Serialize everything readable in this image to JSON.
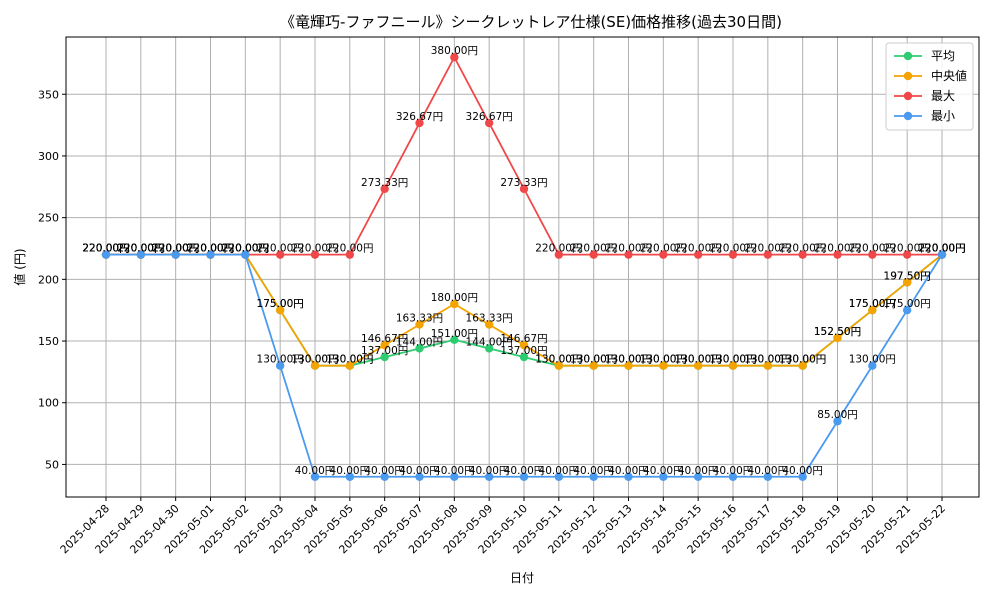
{
  "chart_data": {
    "type": "line",
    "title": "《竜輝巧-ファフニール》シークレットレア仕様(SE)価格推移(過去30日間)",
    "xlabel": "日付",
    "ylabel": "値 (円)",
    "ylim": [
      23.6,
      396.4
    ],
    "yticks": [
      50,
      100,
      150,
      200,
      250,
      300,
      350
    ],
    "grid": true,
    "legend_position": "top-right",
    "label_suffix": "円",
    "categories": [
      "2025-04-28",
      "2025-04-29",
      "2025-04-30",
      "2025-05-01",
      "2025-05-02",
      "2025-05-03",
      "2025-05-04",
      "2025-05-05",
      "2025-05-06",
      "2025-05-07",
      "2025-05-08",
      "2025-05-09",
      "2025-05-10",
      "2025-05-11",
      "2025-05-12",
      "2025-05-13",
      "2025-05-14",
      "2025-05-15",
      "2025-05-16",
      "2025-05-17",
      "2025-05-18",
      "2025-05-19",
      "2025-05-20",
      "2025-05-21",
      "2025-05-22"
    ],
    "series": [
      {
        "name": "平均",
        "color": "#2ecc71",
        "values": [
          220,
          220,
          220,
          220,
          220,
          175,
          130,
          130,
          137,
          144,
          151,
          144,
          137,
          130,
          130,
          130,
          130,
          130,
          130,
          130,
          130,
          152.5,
          175,
          197.5,
          220
        ]
      },
      {
        "name": "中央値",
        "color": "#f5a300",
        "values": [
          220,
          220,
          220,
          220,
          220,
          175,
          130,
          130,
          146.67,
          163.33,
          180,
          163.33,
          146.67,
          130,
          130,
          130,
          130,
          130,
          130,
          130,
          130,
          152.5,
          175,
          197.5,
          220
        ]
      },
      {
        "name": "最大",
        "color": "#f04848",
        "values": [
          220,
          220,
          220,
          220,
          220,
          220,
          220,
          220,
          273.33,
          326.67,
          380,
          326.67,
          273.33,
          220,
          220,
          220,
          220,
          220,
          220,
          220,
          220,
          220,
          220,
          220,
          220
        ]
      },
      {
        "name": "最小",
        "color": "#4a9af0",
        "values": [
          220,
          220,
          220,
          220,
          220,
          130,
          40,
          40,
          40,
          40,
          40,
          40,
          40,
          40,
          40,
          40,
          40,
          40,
          40,
          40,
          40,
          85,
          130,
          175,
          220
        ]
      }
    ]
  }
}
